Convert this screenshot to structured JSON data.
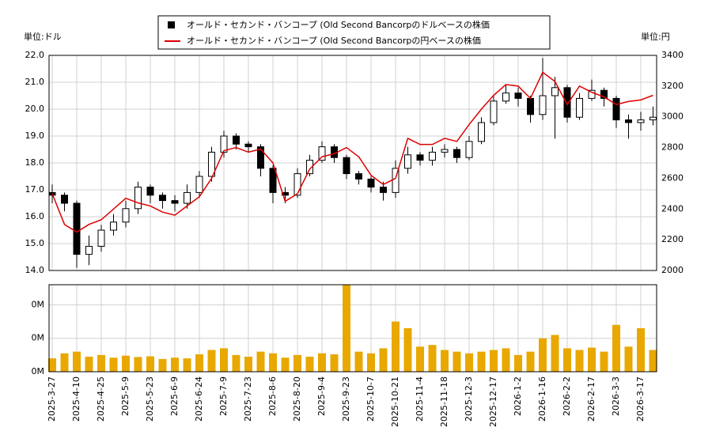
{
  "chart_data": [
    {
      "type": "candlestick",
      "y_label": "単位:ドル",
      "y2_label": "単位:円",
      "ylim": [
        14,
        22
      ],
      "yticks": [
        {
          "value": 14,
          "label": "14.0"
        },
        {
          "value": 15,
          "label": "15.0"
        },
        {
          "value": 16,
          "label": "16.0"
        },
        {
          "value": 17,
          "label": "17.0"
        },
        {
          "value": 18,
          "label": "18.0"
        },
        {
          "value": 19,
          "label": "19.0"
        },
        {
          "value": 20,
          "label": "20.0"
        },
        {
          "value": 21,
          "label": "21.0"
        },
        {
          "value": 22,
          "label": "22.0"
        }
      ],
      "y2lim": [
        2000,
        3400
      ],
      "y2ticks": [
        2000,
        2200,
        2400,
        2600,
        2800,
        3000,
        3200,
        3400
      ],
      "grid": true,
      "legend": "top",
      "series": [
        {
          "name": "オールド・セカンド・バンコープ (Old Second Bancorpのドルベースの株価",
          "color": "#000000",
          "open": [
            16.9,
            16.8,
            16.5,
            14.6,
            14.9,
            15.5,
            15.8,
            16.3,
            17.1,
            16.8,
            16.6,
            16.5,
            16.9,
            17.5,
            18.4,
            19.0,
            18.7,
            18.6,
            17.8,
            16.9,
            16.8,
            17.6,
            18.1,
            18.6,
            18.2,
            17.6,
            17.4,
            17.1,
            16.9,
            17.8,
            18.3,
            18.1,
            18.4,
            18.5,
            18.2,
            18.8,
            19.5,
            20.3,
            20.6,
            20.4,
            19.8,
            20.5,
            20.8,
            19.7,
            20.4,
            20.7,
            20.4,
            19.6,
            19.5,
            19.6
          ],
          "high": [
            17.2,
            16.9,
            16.6,
            15.3,
            15.7,
            16.1,
            16.6,
            17.3,
            17.2,
            16.9,
            16.8,
            17.2,
            17.7,
            18.6,
            19.2,
            19.1,
            18.8,
            18.7,
            17.9,
            17.1,
            17.8,
            18.3,
            18.8,
            18.7,
            18.3,
            17.7,
            17.5,
            17.3,
            18.1,
            18.6,
            18.4,
            18.6,
            18.7,
            18.6,
            19.0,
            19.7,
            20.5,
            20.9,
            20.8,
            20.5,
            21.9,
            21.2,
            20.9,
            20.6,
            21.1,
            20.8,
            20.5,
            19.8,
            19.9,
            20.1
          ],
          "low": [
            16.5,
            16.2,
            14.1,
            14.2,
            14.7,
            15.3,
            15.6,
            16.1,
            16.5,
            16.3,
            16.2,
            16.3,
            16.7,
            17.3,
            18.2,
            18.5,
            18.4,
            17.5,
            16.5,
            16.5,
            16.7,
            17.5,
            18.0,
            18.0,
            17.4,
            17.2,
            16.9,
            16.6,
            16.7,
            17.6,
            17.9,
            17.9,
            18.2,
            18.0,
            18.1,
            18.7,
            19.4,
            20.2,
            20.1,
            19.5,
            19.6,
            18.9,
            19.5,
            19.6,
            20.3,
            20.1,
            19.3,
            18.9,
            19.2,
            19.4
          ],
          "close": [
            16.8,
            16.5,
            14.6,
            14.9,
            15.5,
            15.8,
            16.3,
            17.1,
            16.8,
            16.6,
            16.5,
            16.9,
            17.5,
            18.4,
            19.0,
            18.7,
            18.6,
            17.8,
            16.9,
            16.8,
            17.6,
            18.1,
            18.6,
            18.2,
            17.6,
            17.4,
            17.1,
            16.9,
            17.8,
            18.3,
            18.1,
            18.4,
            18.5,
            18.2,
            18.8,
            19.5,
            20.3,
            20.6,
            20.4,
            19.8,
            20.5,
            20.8,
            19.7,
            20.4,
            20.7,
            20.4,
            19.6,
            19.5,
            19.6,
            19.7
          ]
        },
        {
          "name": "オールド・セカンド・バンコープ (Old Second Bancorpの円ベースの株価",
          "color": "#dd0000",
          "axis": "y2",
          "values": [
            2500,
            2300,
            2250,
            2300,
            2330,
            2400,
            2470,
            2440,
            2420,
            2380,
            2360,
            2420,
            2480,
            2600,
            2780,
            2800,
            2770,
            2790,
            2700,
            2450,
            2500,
            2660,
            2740,
            2760,
            2800,
            2740,
            2620,
            2560,
            2600,
            2860,
            2820,
            2820,
            2860,
            2840,
            2950,
            3050,
            3140,
            3210,
            3200,
            3120,
            3290,
            3230,
            3080,
            3200,
            3160,
            3130,
            3080,
            3100,
            3110,
            3140
          ]
        }
      ]
    },
    {
      "type": "bar",
      "categories": [
        "2025-3-27",
        null,
        "2025-4-10",
        null,
        "2025-4-25",
        null,
        "2025-5-9",
        null,
        "2025-5-23",
        null,
        "2025-6-9",
        null,
        "2025-6-24",
        null,
        "2025-7-9",
        null,
        "2025-7-23",
        null,
        "2025-8-6",
        null,
        "2025-8-20",
        null,
        "2025-9-4",
        null,
        "2025-9-23",
        null,
        "2025-10-7",
        null,
        "2025-10-21",
        null,
        "2025-11-4",
        null,
        "2025-11-18",
        null,
        "2025-12-3",
        null,
        "2025-12-17",
        null,
        "2026-1-2",
        null,
        "2026-1-16",
        null,
        "2026-2-2",
        null,
        "2026-2-17",
        null,
        "2026-3-3",
        null,
        "2026-3-17",
        null
      ],
      "color": "#e8a800",
      "values": [
        40000,
        55000,
        60000,
        45000,
        50000,
        42000,
        48000,
        44000,
        46000,
        38000,
        42000,
        40000,
        52000,
        65000,
        70000,
        50000,
        45000,
        60000,
        55000,
        42000,
        50000,
        45000,
        55000,
        52000,
        260000,
        60000,
        55000,
        70000,
        150000,
        130000,
        75000,
        80000,
        65000,
        60000,
        55000,
        60000,
        65000,
        70000,
        50000,
        60000,
        100000,
        110000,
        70000,
        65000,
        72000,
        60000,
        140000,
        75000,
        130000,
        65000
      ],
      "ylim": [
        0,
        260000
      ],
      "yticks": [
        {
          "value": 0,
          "label": "0M"
        },
        {
          "value": 100000,
          "label": "0M"
        },
        {
          "value": 200000,
          "label": "0M"
        }
      ],
      "grid": true
    }
  ]
}
